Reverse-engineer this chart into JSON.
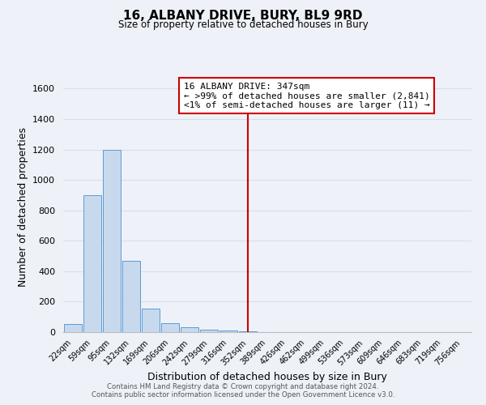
{
  "title": "16, ALBANY DRIVE, BURY, BL9 9RD",
  "subtitle": "Size of property relative to detached houses in Bury",
  "xlabel": "Distribution of detached houses by size in Bury",
  "ylabel": "Number of detached properties",
  "bar_labels": [
    "22sqm",
    "59sqm",
    "95sqm",
    "132sqm",
    "169sqm",
    "206sqm",
    "242sqm",
    "279sqm",
    "316sqm",
    "352sqm",
    "389sqm",
    "426sqm",
    "462sqm",
    "499sqm",
    "536sqm",
    "573sqm",
    "609sqm",
    "646sqm",
    "683sqm",
    "719sqm",
    "756sqm"
  ],
  "bar_values": [
    55,
    900,
    1200,
    470,
    155,
    60,
    30,
    15,
    8,
    3,
    0,
    0,
    0,
    0,
    0,
    0,
    0,
    0,
    0,
    0,
    0
  ],
  "bar_color": "#c8d9ee",
  "bar_edge_color": "#5b9bd5",
  "vline_x_index": 9,
  "vline_color": "#cc0000",
  "annotation_line1": "16 ALBANY DRIVE: 347sqm",
  "annotation_line2": "← >99% of detached houses are smaller (2,841)",
  "annotation_line3": "<1% of semi-detached houses are larger (11) →",
  "ylim": [
    0,
    1650
  ],
  "yticks": [
    0,
    200,
    400,
    600,
    800,
    1000,
    1200,
    1400,
    1600
  ],
  "background_color": "#eef2f8",
  "grid_color": "#d8dde8",
  "footer_line1": "Contains HM Land Registry data © Crown copyright and database right 2024.",
  "footer_line2": "Contains public sector information licensed under the Open Government Licence v3.0."
}
